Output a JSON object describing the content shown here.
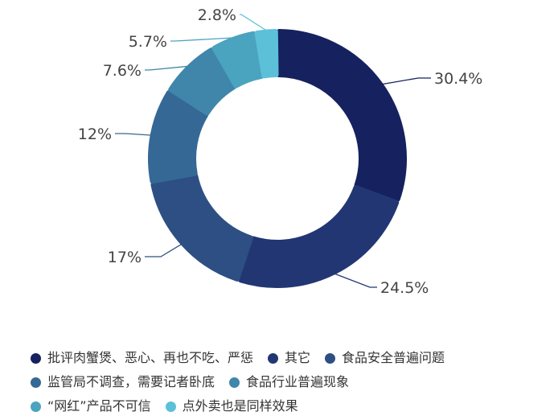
{
  "chart_data": {
    "type": "pie",
    "title": "",
    "slices": [
      {
        "label": "批评肉蟹煲、恶心、再也不吃、严惩",
        "value": 30.4,
        "display": "30.4%",
        "color": "#16215f"
      },
      {
        "label": "其它",
        "value": 24.5,
        "display": "24.5%",
        "color": "#223673"
      },
      {
        "label": "食品安全普遍问题",
        "value": 17,
        "display": "17%",
        "color": "#2d4f83"
      },
      {
        "label": "监管局不调查，需要记者卧底",
        "value": 12,
        "display": "12%",
        "color": "#356895"
      },
      {
        "label": "食品行业普遍现象",
        "value": 7.6,
        "display": "7.6%",
        "color": "#3f86aa"
      },
      {
        "label": "“网红”产品不可信",
        "value": 5.7,
        "display": "5.7%",
        "color": "#4aa3bf"
      },
      {
        "label": "点外卖也是同样效果",
        "value": 2.8,
        "display": "2.8%",
        "color": "#5bc0d8"
      }
    ],
    "legend": {
      "position": "bottom"
    }
  }
}
